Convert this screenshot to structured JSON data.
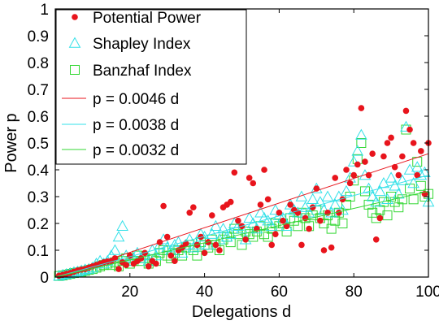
{
  "chart_data": {
    "type": "scatter",
    "xlabel": "Delegations d",
    "ylabel": "Power p",
    "xlim": [
      0,
      100
    ],
    "ylim": [
      0,
      1
    ],
    "xticks": [
      20,
      40,
      60,
      80,
      100
    ],
    "yticks": [
      0,
      0.1,
      0.2,
      0.3,
      0.4,
      0.5,
      0.6,
      0.7,
      0.8,
      0.9,
      1
    ],
    "ytick_labels": [
      "0",
      "0.1",
      "0.2",
      "0.3",
      "0.4",
      "0.5",
      "0.6",
      "0.7",
      "0.8",
      "0.9",
      "1"
    ],
    "legend_position": "top-left",
    "series": [
      {
        "name": "Potential Power",
        "marker": "filled-circle",
        "color": "#e8141c",
        "points": [
          [
            1,
            0.005
          ],
          [
            2,
            0.008
          ],
          [
            3,
            0.012
          ],
          [
            4,
            0.015
          ],
          [
            5,
            0.02
          ],
          [
            6,
            0.025
          ],
          [
            7,
            0.028
          ],
          [
            8,
            0.03
          ],
          [
            9,
            0.035
          ],
          [
            10,
            0.04
          ],
          [
            11,
            0.045
          ],
          [
            12,
            0.05
          ],
          [
            13,
            0.055
          ],
          [
            14,
            0.058
          ],
          [
            15,
            0.06
          ],
          [
            16,
            0.07
          ],
          [
            17,
            0.03
          ],
          [
            18,
            0.055
          ],
          [
            19,
            0.045
          ],
          [
            20,
            0.08
          ],
          [
            21,
            0.05
          ],
          [
            22,
            0.06
          ],
          [
            23,
            0.07
          ],
          [
            24,
            0.09
          ],
          [
            25,
            0.04
          ],
          [
            26,
            0.06
          ],
          [
            27,
            0.05
          ],
          [
            28,
            0.13
          ],
          [
            29,
            0.265
          ],
          [
            30,
            0.15
          ],
          [
            31,
            0.08
          ],
          [
            32,
            0.06
          ],
          [
            33,
            0.1
          ],
          [
            34,
            0.11
          ],
          [
            35,
            0.125
          ],
          [
            36,
            0.24
          ],
          [
            37,
            0.26
          ],
          [
            38,
            0.12
          ],
          [
            39,
            0.15
          ],
          [
            40,
            0.09
          ],
          [
            41,
            0.13
          ],
          [
            42,
            0.23
          ],
          [
            43,
            0.12
          ],
          [
            44,
            0.1
          ],
          [
            45,
            0.26
          ],
          [
            46,
            0.27
          ],
          [
            47,
            0.28
          ],
          [
            48,
            0.39
          ],
          [
            49,
            0.21
          ],
          [
            50,
            0.19
          ],
          [
            51,
            0.14
          ],
          [
            52,
            0.37
          ],
          [
            53,
            0.35
          ],
          [
            54,
            0.18
          ],
          [
            55,
            0.27
          ],
          [
            56,
            0.4
          ],
          [
            57,
            0.29
          ],
          [
            58,
            0.12
          ],
          [
            59,
            0.16
          ],
          [
            60,
            0.24
          ],
          [
            61,
            0.21
          ],
          [
            62,
            0.19
          ],
          [
            63,
            0.27
          ],
          [
            64,
            0.25
          ],
          [
            65,
            0.24
          ],
          [
            66,
            0.12
          ],
          [
            67,
            0.22
          ],
          [
            68,
            0.18
          ],
          [
            69,
            0.26
          ],
          [
            70,
            0.33
          ],
          [
            71,
            0.21
          ],
          [
            72,
            0.1
          ],
          [
            73,
            0.24
          ],
          [
            74,
            0.11
          ],
          [
            75,
            0.37
          ],
          [
            76,
            0.24
          ],
          [
            77,
            0.29
          ],
          [
            78,
            0.4
          ],
          [
            79,
            0.35
          ],
          [
            80,
            0.38
          ],
          [
            81,
            0.42
          ],
          [
            82,
            0.63
          ],
          [
            83,
            0.43
          ],
          [
            84,
            0.38
          ],
          [
            85,
            0.46
          ],
          [
            86,
            0.14
          ],
          [
            87,
            0.22
          ],
          [
            88,
            0.45
          ],
          [
            89,
            0.5
          ],
          [
            90,
            0.52
          ],
          [
            91,
            0.41
          ],
          [
            92,
            0.38
          ],
          [
            93,
            0.45
          ],
          [
            94,
            0.62
          ],
          [
            95,
            0.55
          ],
          [
            96,
            0.5
          ],
          [
            97,
            0.38
          ],
          [
            98,
            0.47
          ],
          [
            99,
            0.31
          ],
          [
            100,
            0.5
          ]
        ]
      },
      {
        "name": "Shapley Index",
        "marker": "hollow-triangle",
        "color": "#33e0e8",
        "points": [
          [
            1,
            0.004
          ],
          [
            2,
            0.008
          ],
          [
            3,
            0.011
          ],
          [
            4,
            0.014
          ],
          [
            5,
            0.018
          ],
          [
            6,
            0.02
          ],
          [
            7,
            0.024
          ],
          [
            8,
            0.028
          ],
          [
            9,
            0.03
          ],
          [
            10,
            0.035
          ],
          [
            11,
            0.05
          ],
          [
            12,
            0.06
          ],
          [
            13,
            0.05
          ],
          [
            14,
            0.06
          ],
          [
            15,
            0.08
          ],
          [
            16,
            0.1
          ],
          [
            17,
            0.15
          ],
          [
            18,
            0.19
          ],
          [
            19,
            0.08
          ],
          [
            20,
            0.06
          ],
          [
            21,
            0.07
          ],
          [
            22,
            0.09
          ],
          [
            23,
            0.07
          ],
          [
            24,
            0.08
          ],
          [
            25,
            0.06
          ],
          [
            26,
            0.1
          ],
          [
            27,
            0.08
          ],
          [
            28,
            0.12
          ],
          [
            29,
            0.14
          ],
          [
            30,
            0.11
          ],
          [
            31,
            0.1
          ],
          [
            32,
            0.12
          ],
          [
            33,
            0.13
          ],
          [
            34,
            0.09
          ],
          [
            35,
            0.12
          ],
          [
            36,
            0.14
          ],
          [
            37,
            0.11
          ],
          [
            38,
            0.12
          ],
          [
            39,
            0.16
          ],
          [
            40,
            0.15
          ],
          [
            41,
            0.12
          ],
          [
            42,
            0.16
          ],
          [
            43,
            0.19
          ],
          [
            44,
            0.14
          ],
          [
            45,
            0.18
          ],
          [
            46,
            0.15
          ],
          [
            47,
            0.16
          ],
          [
            48,
            0.2
          ],
          [
            49,
            0.19
          ],
          [
            50,
            0.18
          ],
          [
            51,
            0.14
          ],
          [
            52,
            0.22
          ],
          [
            53,
            0.2
          ],
          [
            54,
            0.18
          ],
          [
            55,
            0.24
          ],
          [
            56,
            0.22
          ],
          [
            57,
            0.21
          ],
          [
            58,
            0.19
          ],
          [
            59,
            0.25
          ],
          [
            60,
            0.23
          ],
          [
            61,
            0.22
          ],
          [
            62,
            0.19
          ],
          [
            63,
            0.27
          ],
          [
            64,
            0.25
          ],
          [
            65,
            0.24
          ],
          [
            66,
            0.3
          ],
          [
            67,
            0.26
          ],
          [
            68,
            0.24
          ],
          [
            69,
            0.29
          ],
          [
            70,
            0.33
          ],
          [
            71,
            0.28
          ],
          [
            72,
            0.25
          ],
          [
            73,
            0.3
          ],
          [
            74,
            0.24
          ],
          [
            75,
            0.27
          ],
          [
            76,
            0.3
          ],
          [
            77,
            0.25
          ],
          [
            78,
            0.32
          ],
          [
            79,
            0.37
          ],
          [
            80,
            0.43
          ],
          [
            81,
            0.47
          ],
          [
            82,
            0.53
          ],
          [
            83,
            0.38
          ],
          [
            84,
            0.33
          ],
          [
            85,
            0.3
          ],
          [
            86,
            0.28
          ],
          [
            87,
            0.32
          ],
          [
            88,
            0.35
          ],
          [
            89,
            0.29
          ],
          [
            90,
            0.37
          ],
          [
            91,
            0.34
          ],
          [
            92,
            0.31
          ],
          [
            93,
            0.36
          ],
          [
            94,
            0.56
          ],
          [
            95,
            0.4
          ],
          [
            96,
            0.35
          ],
          [
            97,
            0.41
          ],
          [
            98,
            0.38
          ],
          [
            99,
            0.39
          ],
          [
            100,
            0.28
          ]
        ]
      },
      {
        "name": "Banzhaf Index",
        "marker": "hollow-square",
        "color": "#33d733",
        "points": [
          [
            1,
            0.004
          ],
          [
            2,
            0.006
          ],
          [
            3,
            0.009
          ],
          [
            4,
            0.012
          ],
          [
            5,
            0.015
          ],
          [
            6,
            0.017
          ],
          [
            7,
            0.02
          ],
          [
            8,
            0.023
          ],
          [
            9,
            0.027
          ],
          [
            10,
            0.03
          ],
          [
            11,
            0.035
          ],
          [
            12,
            0.04
          ],
          [
            13,
            0.045
          ],
          [
            14,
            0.05
          ],
          [
            15,
            0.045
          ],
          [
            16,
            0.055
          ],
          [
            17,
            0.04
          ],
          [
            18,
            0.06
          ],
          [
            19,
            0.07
          ],
          [
            20,
            0.05
          ],
          [
            21,
            0.06
          ],
          [
            22,
            0.08
          ],
          [
            23,
            0.06
          ],
          [
            24,
            0.07
          ],
          [
            25,
            0.05
          ],
          [
            26,
            0.065
          ],
          [
            27,
            0.06
          ],
          [
            28,
            0.09
          ],
          [
            29,
            0.1
          ],
          [
            30,
            0.08
          ],
          [
            31,
            0.07
          ],
          [
            32,
            0.09
          ],
          [
            33,
            0.1
          ],
          [
            34,
            0.08
          ],
          [
            35,
            0.11
          ],
          [
            36,
            0.12
          ],
          [
            37,
            0.1
          ],
          [
            38,
            0.08
          ],
          [
            39,
            0.13
          ],
          [
            40,
            0.12
          ],
          [
            41,
            0.11
          ],
          [
            42,
            0.14
          ],
          [
            43,
            0.12
          ],
          [
            44,
            0.1
          ],
          [
            45,
            0.14
          ],
          [
            46,
            0.15
          ],
          [
            47,
            0.13
          ],
          [
            48,
            0.18
          ],
          [
            49,
            0.16
          ],
          [
            50,
            0.12
          ],
          [
            51,
            0.17
          ],
          [
            52,
            0.16
          ],
          [
            53,
            0.15
          ],
          [
            54,
            0.17
          ],
          [
            55,
            0.19
          ],
          [
            56,
            0.16
          ],
          [
            57,
            0.15
          ],
          [
            58,
            0.18
          ],
          [
            59,
            0.2
          ],
          [
            60,
            0.19
          ],
          [
            61,
            0.2
          ],
          [
            62,
            0.17
          ],
          [
            63,
            0.22
          ],
          [
            64,
            0.21
          ],
          [
            65,
            0.19
          ],
          [
            66,
            0.24
          ],
          [
            67,
            0.22
          ],
          [
            68,
            0.19
          ],
          [
            69,
            0.23
          ],
          [
            70,
            0.25
          ],
          [
            71,
            0.22
          ],
          [
            72,
            0.2
          ],
          [
            73,
            0.23
          ],
          [
            74,
            0.18
          ],
          [
            75,
            0.21
          ],
          [
            76,
            0.24
          ],
          [
            77,
            0.2
          ],
          [
            78,
            0.27
          ],
          [
            79,
            0.3
          ],
          [
            80,
            0.36
          ],
          [
            81,
            0.44
          ],
          [
            82,
            0.5
          ],
          [
            83,
            0.32
          ],
          [
            84,
            0.27
          ],
          [
            85,
            0.24
          ],
          [
            86,
            0.22
          ],
          [
            87,
            0.25
          ],
          [
            88,
            0.28
          ],
          [
            89,
            0.23
          ],
          [
            90,
            0.3
          ],
          [
            91,
            0.28
          ],
          [
            92,
            0.26
          ],
          [
            93,
            0.29
          ],
          [
            94,
            0.55
          ],
          [
            95,
            0.33
          ],
          [
            96,
            0.29
          ],
          [
            97,
            0.43
          ],
          [
            98,
            0.34
          ],
          [
            99,
            0.3
          ],
          [
            100,
            0.31
          ]
        ]
      },
      {
        "name": "p = 0.0046 d",
        "marker": "line",
        "color": "#e8141c",
        "slope": 0.0046
      },
      {
        "name": "p = 0.0038 d",
        "marker": "line",
        "color": "#33e0e8",
        "slope": 0.0038
      },
      {
        "name": "p = 0.0032 d",
        "marker": "line",
        "color": "#33d733",
        "slope": 0.0032
      }
    ]
  }
}
